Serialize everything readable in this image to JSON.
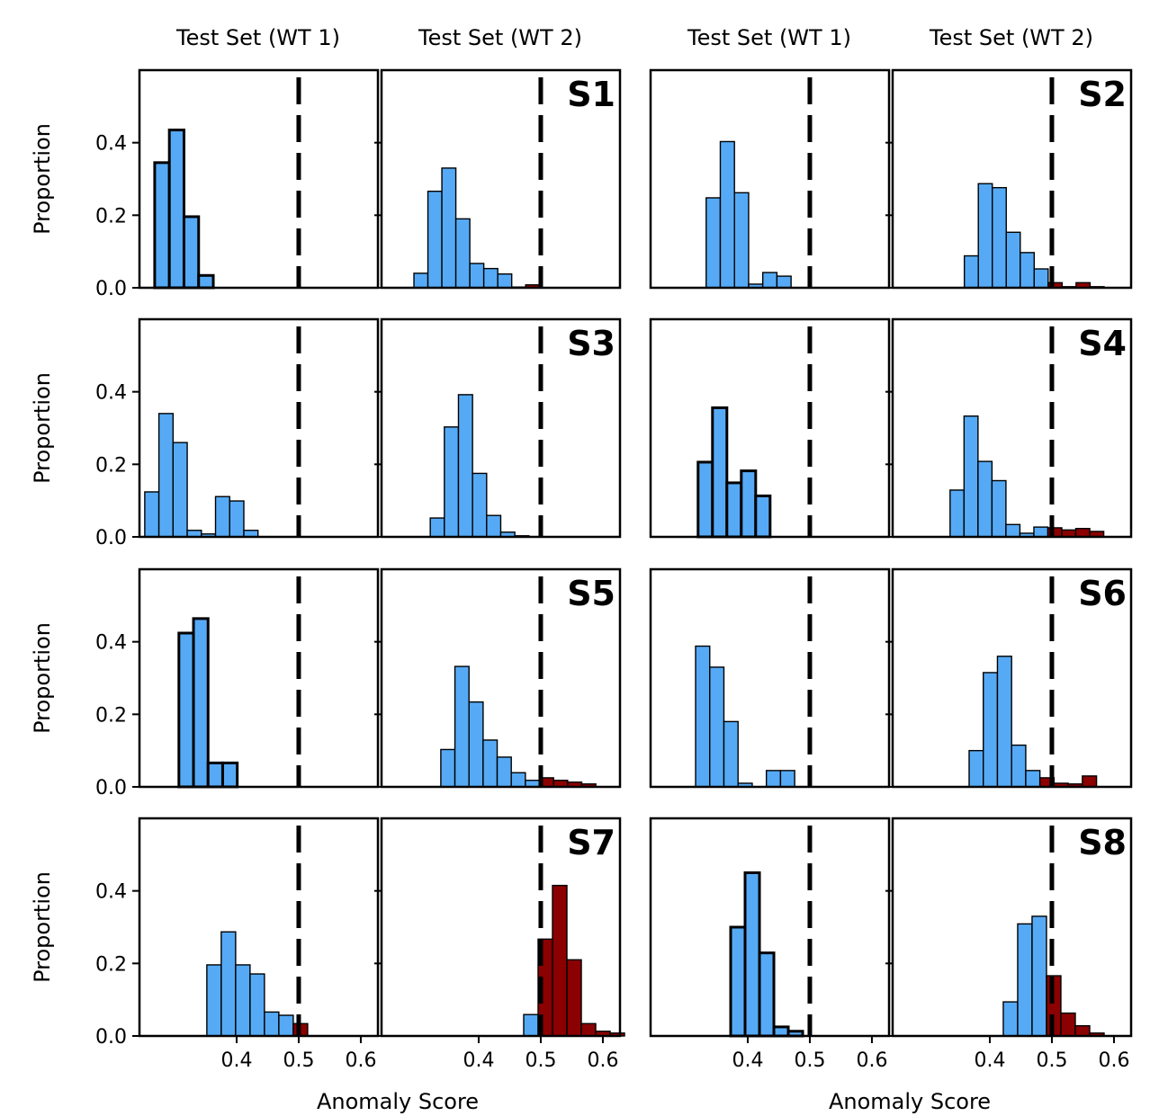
{
  "chart_data": {
    "type": "histogram-grid",
    "column_titles": [
      "Test Set (WT 1)",
      "Test Set (WT 2)",
      "Test Set (WT 1)",
      "Test Set (WT 2)"
    ],
    "xlabel": "Anomaly Score",
    "ylabel": "Proportion",
    "xlim": [
      0.2435,
      0.6276
    ],
    "ylim": [
      0,
      0.6
    ],
    "xticks": [
      "0.4",
      "0.5",
      "0.6"
    ],
    "xtick_values": [
      0.4,
      0.5,
      0.6
    ],
    "yticks": [
      "0.0",
      "0.2",
      "0.4"
    ],
    "ytick_values": [
      0.0,
      0.2,
      0.4
    ],
    "threshold": 0.5,
    "colors": {
      "normal": "#56aaf5",
      "anomaly": "#8b0000",
      "threshold": "#000000"
    },
    "grid": false,
    "panels": [
      {
        "label": "S1",
        "wt1": {
          "start": 0.268,
          "bin_width": 0.0236,
          "thick_edge": true,
          "anomaly_from": null,
          "values": [
            0.345,
            0.435,
            0.196,
            0.034
          ]
        },
        "wt2": {
          "start": 0.2957,
          "bin_width": 0.0225,
          "thick_edge": false,
          "anomaly_from": 8,
          "values": [
            0.04,
            0.266,
            0.33,
            0.19,
            0.067,
            0.053,
            0.038,
            0.002,
            0.008
          ]
        }
      },
      {
        "label": "S2",
        "wt1": {
          "start": 0.333,
          "bin_width": 0.0228,
          "thick_edge": false,
          "anomaly_from": null,
          "values": [
            0.248,
            0.403,
            0.262,
            0.01,
            0.042,
            0.032
          ]
        },
        "wt2": {
          "start": 0.359,
          "bin_width": 0.0225,
          "thick_edge": false,
          "anomaly_from": 6,
          "values": [
            0.088,
            0.287,
            0.276,
            0.153,
            0.097,
            0.052,
            0.014,
            0.003,
            0.014,
            0.003
          ]
        }
      },
      {
        "label": "S3",
        "wt1": {
          "start": 0.252,
          "bin_width": 0.0228,
          "thick_edge": false,
          "anomaly_from": null,
          "values": [
            0.124,
            0.34,
            0.26,
            0.018,
            0.008,
            0.111,
            0.099,
            0.018
          ]
        },
        "wt2": {
          "start": 0.322,
          "bin_width": 0.0227,
          "thick_edge": false,
          "anomaly_from": null,
          "values": [
            0.052,
            0.303,
            0.392,
            0.175,
            0.059,
            0.013,
            0.003
          ]
        }
      },
      {
        "label": "S4",
        "wt1": {
          "start": 0.32,
          "bin_width": 0.0232,
          "thick_edge": true,
          "anomaly_from": null,
          "values": [
            0.206,
            0.356,
            0.149,
            0.182,
            0.113
          ]
        },
        "wt2": {
          "start": 0.336,
          "bin_width": 0.0225,
          "thick_edge": false,
          "anomaly_from": 7,
          "values": [
            0.129,
            0.333,
            0.208,
            0.155,
            0.034,
            0.01,
            0.027,
            0.025,
            0.019,
            0.023,
            0.015
          ]
        }
      },
      {
        "label": "S5",
        "wt1": {
          "start": 0.307,
          "bin_width": 0.0235,
          "thick_edge": true,
          "anomaly_from": null,
          "values": [
            0.424,
            0.464,
            0.066,
            0.066
          ]
        },
        "wt2": {
          "start": 0.339,
          "bin_width": 0.0227,
          "thick_edge": false,
          "anomaly_from": 7,
          "values": [
            0.103,
            0.332,
            0.234,
            0.129,
            0.082,
            0.039,
            0.018,
            0.025,
            0.018,
            0.013,
            0.008
          ]
        }
      },
      {
        "label": "S6",
        "wt1": {
          "start": 0.316,
          "bin_width": 0.0228,
          "thick_edge": false,
          "anomaly_from": null,
          "values": [
            0.388,
            0.33,
            0.18,
            0.01,
            0.0,
            0.045,
            0.045
          ]
        },
        "wt2": {
          "start": 0.3667,
          "bin_width": 0.0228,
          "thick_edge": false,
          "anomaly_from": 5,
          "values": [
            0.1,
            0.315,
            0.36,
            0.115,
            0.045,
            0.025,
            0.01,
            0.008,
            0.03
          ]
        }
      },
      {
        "label": "S7",
        "wt1": {
          "start": 0.352,
          "bin_width": 0.0232,
          "thick_edge": false,
          "anomaly_from": 6,
          "values": [
            0.196,
            0.287,
            0.196,
            0.171,
            0.066,
            0.057,
            0.034
          ]
        },
        "wt2": {
          "start": 0.4725,
          "bin_width": 0.0232,
          "thick_edge": false,
          "anomaly_from": 1,
          "values": [
            0.059,
            0.267,
            0.415,
            0.21,
            0.034,
            0.013,
            0.008
          ]
        }
      },
      {
        "label": "S8",
        "wt1": {
          "start": 0.3725,
          "bin_width": 0.0232,
          "thick_edge": true,
          "anomaly_from": null,
          "values": [
            0.3,
            0.45,
            0.229,
            0.025,
            0.013
          ]
        },
        "wt2": {
          "start": 0.4217,
          "bin_width": 0.0232,
          "thick_edge": false,
          "anomaly_from": 3,
          "values": [
            0.094,
            0.309,
            0.33,
            0.166,
            0.063,
            0.028,
            0.008
          ]
        }
      }
    ]
  }
}
